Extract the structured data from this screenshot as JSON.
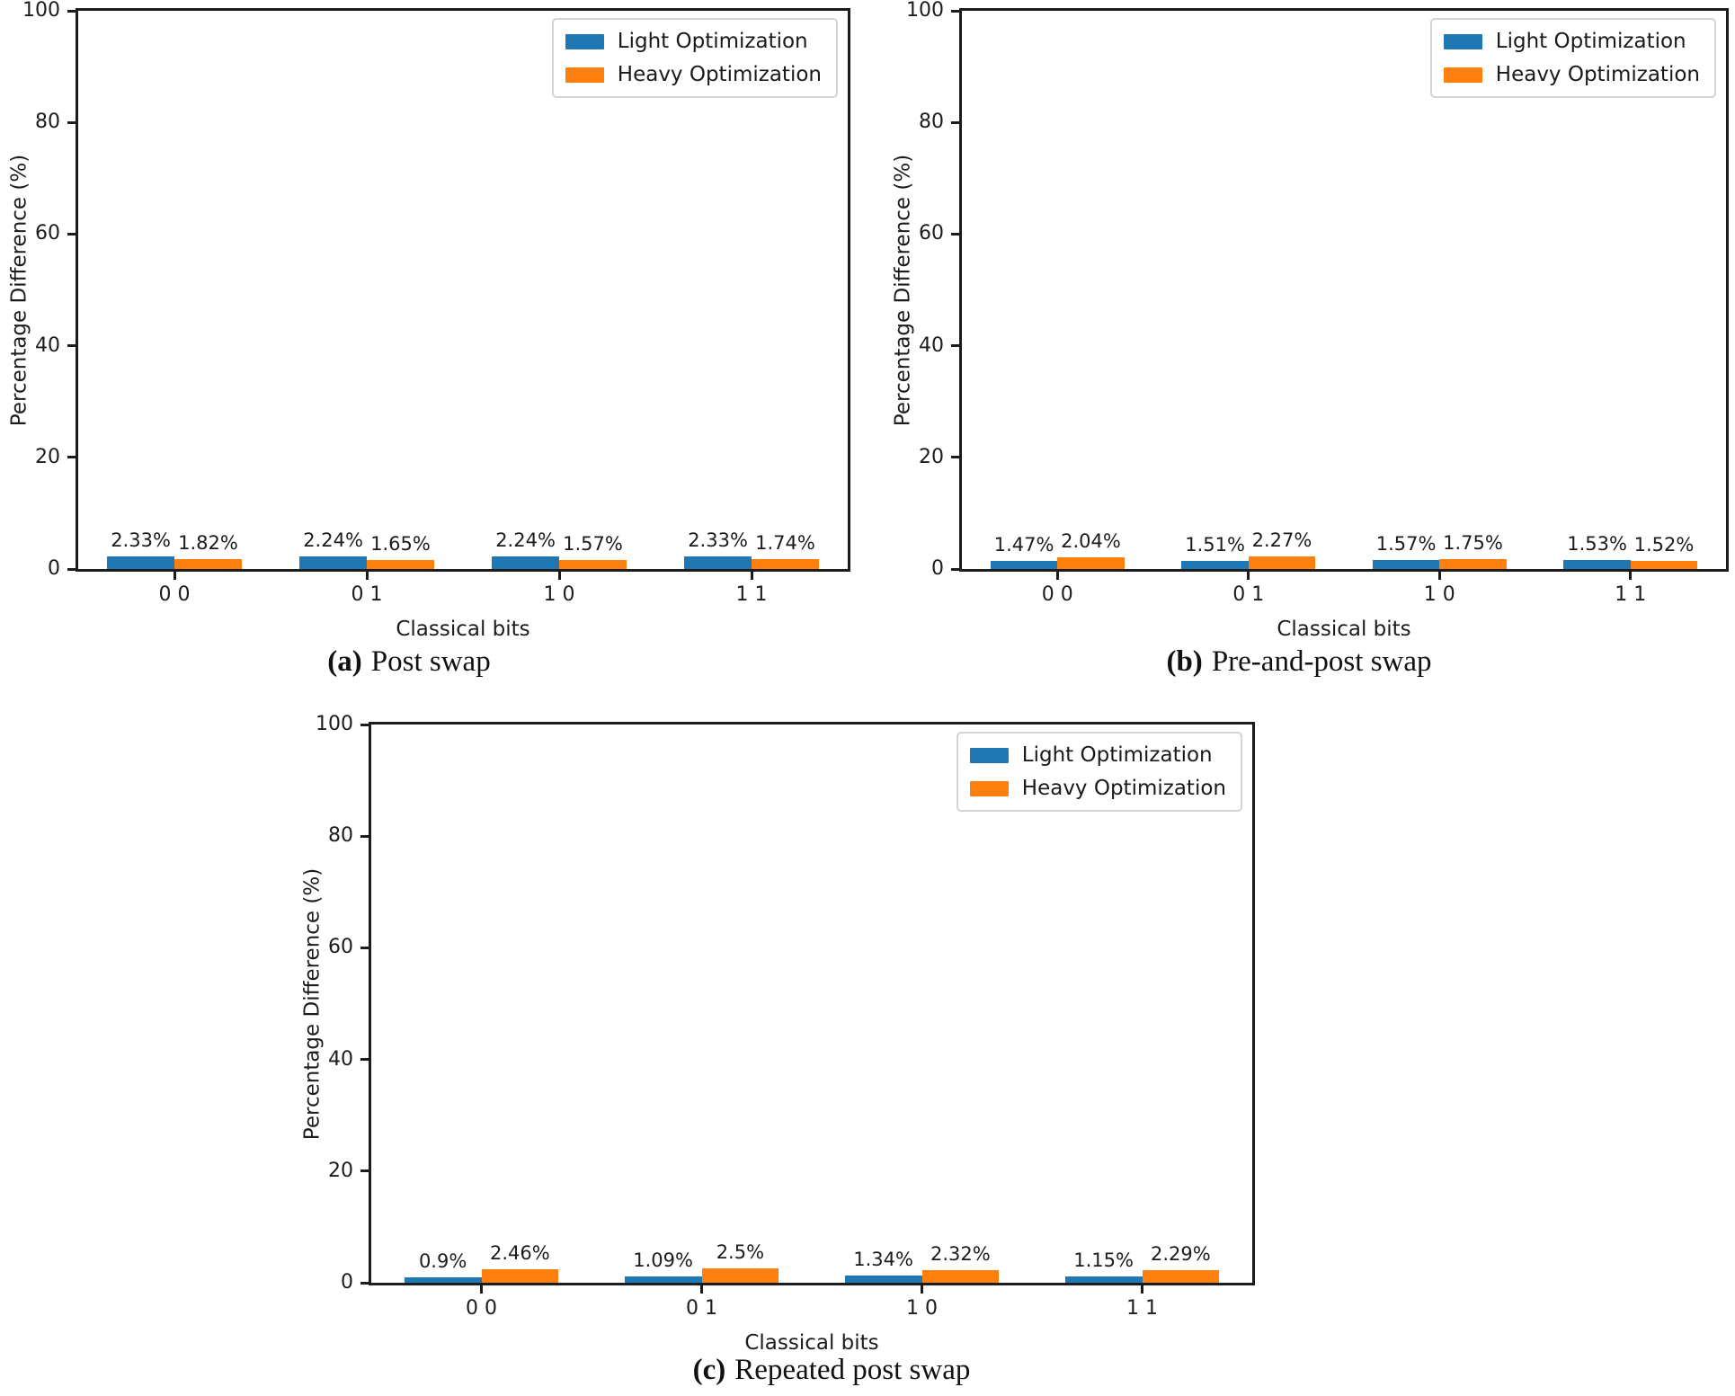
{
  "figure": {
    "background": "#ffffff",
    "axis_color": "#1c1c1c",
    "legend": [
      {
        "label": "Light Optimization",
        "color": "#1f77b4"
      },
      {
        "label": "Heavy Optimization",
        "color": "#ff7f0e"
      }
    ]
  },
  "chart_data": [
    {
      "id": "a",
      "type": "bar",
      "caption_tag": "(a)",
      "caption_text": "Post swap",
      "xlabel": "Classical bits",
      "ylabel": "Percentage Difference (%)",
      "ylim": [
        0,
        100
      ],
      "yticks": [
        0,
        20,
        40,
        60,
        80,
        100
      ],
      "categories": [
        "0 0",
        "0 1",
        "1 0",
        "1 1"
      ],
      "grid": false,
      "legend_position": "upper right",
      "series": [
        {
          "name": "Light Optimization",
          "color": "#1f77b4",
          "values": [
            2.33,
            2.24,
            2.24,
            2.33
          ],
          "labels": [
            "2.33%",
            "2.24%",
            "2.24%",
            "2.33%"
          ]
        },
        {
          "name": "Heavy Optimization",
          "color": "#ff7f0e",
          "values": [
            1.82,
            1.65,
            1.57,
            1.74
          ],
          "labels": [
            "1.82%",
            "1.65%",
            "1.57%",
            "1.74%"
          ]
        }
      ]
    },
    {
      "id": "b",
      "type": "bar",
      "caption_tag": "(b)",
      "caption_text": "Pre-and-post swap",
      "xlabel": "Classical bits",
      "ylabel": "Percentage Difference (%)",
      "ylim": [
        0,
        100
      ],
      "yticks": [
        0,
        20,
        40,
        60,
        80,
        100
      ],
      "categories": [
        "0 0",
        "0 1",
        "1 0",
        "1 1"
      ],
      "grid": false,
      "legend_position": "upper right",
      "series": [
        {
          "name": "Light Optimization",
          "color": "#1f77b4",
          "values": [
            1.47,
            1.51,
            1.57,
            1.53
          ],
          "labels": [
            "1.47%",
            "1.51%",
            "1.57%",
            "1.53%"
          ]
        },
        {
          "name": "Heavy Optimization",
          "color": "#ff7f0e",
          "values": [
            2.04,
            2.27,
            1.75,
            1.52
          ],
          "labels": [
            "2.04%",
            "2.27%",
            "1.75%",
            "1.52%"
          ]
        }
      ]
    },
    {
      "id": "c",
      "type": "bar",
      "caption_tag": "(c)",
      "caption_text": "Repeated post swap",
      "xlabel": "Classical bits",
      "ylabel": "Percentage Difference (%)",
      "ylim": [
        0,
        100
      ],
      "yticks": [
        0,
        20,
        40,
        60,
        80,
        100
      ],
      "categories": [
        "0 0",
        "0 1",
        "1 0",
        "1 1"
      ],
      "grid": false,
      "legend_position": "upper right",
      "series": [
        {
          "name": "Light Optimization",
          "color": "#1f77b4",
          "values": [
            0.9,
            1.09,
            1.34,
            1.15
          ],
          "labels": [
            "0.9%",
            "1.09%",
            "1.34%",
            "1.15%"
          ]
        },
        {
          "name": "Heavy Optimization",
          "color": "#ff7f0e",
          "values": [
            2.46,
            2.5,
            2.32,
            2.29
          ],
          "labels": [
            "2.46%",
            "2.5%",
            "2.32%",
            "2.29%"
          ]
        }
      ]
    }
  ]
}
